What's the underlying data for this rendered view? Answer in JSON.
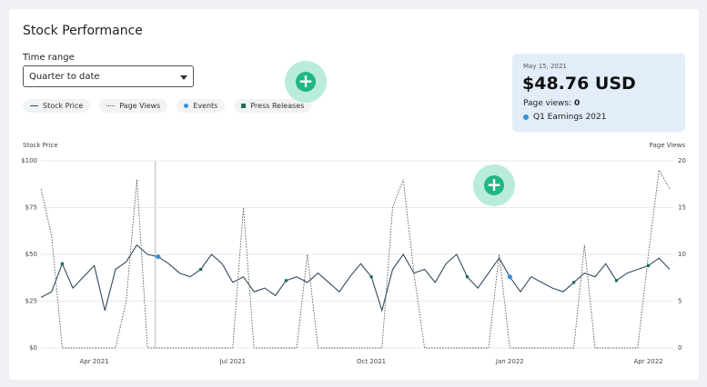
{
  "header": {
    "title": "Stock Performance"
  },
  "controls": {
    "time_range_label": "Time range",
    "time_range_value": "Quarter to date"
  },
  "tooltip": {
    "date": "May 15, 2021",
    "price": "$48.76 USD",
    "page_views_label": "Page views:",
    "page_views_value": "0",
    "event": "Q1 Earnings 2021"
  },
  "chart_data": {
    "type": "line",
    "y_label": "Stock Price",
    "y2_label": "Page Views",
    "categories": [
      null,
      null,
      null,
      null,
      null,
      "Apr 2021",
      null,
      null,
      null,
      null,
      null,
      null,
      null,
      null,
      null,
      null,
      null,
      null,
      "Jul 2021",
      null,
      null,
      null,
      null,
      null,
      null,
      null,
      null,
      null,
      null,
      null,
      null,
      "Oct 2021",
      null,
      null,
      null,
      null,
      null,
      null,
      null,
      null,
      null,
      null,
      null,
      null,
      "Jan 2022",
      null,
      null,
      null,
      null,
      null,
      null,
      null,
      null,
      null,
      null,
      null,
      null,
      "Apr 2022",
      null,
      null
    ],
    "series": [
      {
        "name": "Stock Price",
        "color": "#34495e",
        "style": "solid",
        "values": [
          27,
          30,
          45,
          32,
          38,
          44,
          20,
          42,
          46,
          55,
          50,
          48.76,
          45,
          40,
          38,
          42,
          50,
          45,
          35,
          38,
          30,
          32,
          28,
          36,
          38,
          35,
          40,
          35,
          30,
          38,
          45,
          38,
          20,
          42,
          50,
          40,
          42,
          35,
          45,
          50,
          38,
          32,
          40,
          48,
          38,
          30,
          38,
          35,
          32,
          30,
          35,
          40,
          38,
          45,
          36,
          40,
          42,
          44,
          48,
          42
        ]
      },
      {
        "name": "Page Views",
        "color": "#555555",
        "style": "dotted",
        "axis": "y2",
        "values": [
          17,
          12,
          0,
          0,
          0,
          0,
          0,
          0,
          5,
          18,
          0,
          0,
          0,
          0,
          0,
          0,
          0,
          0,
          0,
          15,
          0,
          0,
          0,
          0,
          0,
          10,
          0,
          0,
          0,
          0,
          0,
          0,
          0,
          15,
          18,
          8,
          0,
          0,
          0,
          0,
          0,
          0,
          0,
          10,
          0,
          0,
          0,
          0,
          0,
          0,
          0,
          11,
          0,
          0,
          0,
          0,
          0,
          10,
          19,
          17
        ]
      },
      {
        "name": "Events",
        "color": "#3b8fd9",
        "style": "dot",
        "values": [
          null,
          null,
          null,
          null,
          null,
          null,
          null,
          null,
          null,
          null,
          null,
          48.76,
          null,
          null,
          null,
          null,
          null,
          null,
          null,
          null,
          null,
          null,
          null,
          null,
          null,
          null,
          null,
          null,
          null,
          null,
          null,
          null,
          null,
          null,
          null,
          null,
          null,
          null,
          null,
          null,
          null,
          null,
          null,
          null,
          38,
          null,
          null,
          null,
          null,
          null,
          null,
          null,
          null,
          null,
          null,
          null,
          null,
          null,
          null,
          null
        ]
      },
      {
        "name": "Press Releases",
        "color": "#1a6b5a",
        "style": "square",
        "values": [
          null,
          null,
          45,
          null,
          null,
          null,
          null,
          null,
          null,
          null,
          null,
          null,
          null,
          null,
          null,
          42,
          null,
          null,
          null,
          null,
          null,
          null,
          null,
          36,
          null,
          null,
          null,
          null,
          null,
          null,
          null,
          38,
          null,
          null,
          null,
          null,
          null,
          null,
          null,
          null,
          38,
          null,
          null,
          null,
          null,
          null,
          null,
          null,
          null,
          null,
          35,
          null,
          null,
          null,
          36,
          null,
          null,
          44,
          null,
          null
        ]
      }
    ],
    "ylim": [
      0,
      100
    ],
    "yticks": [
      {
        "value": 0,
        "label": "$0"
      },
      {
        "value": 25,
        "label": "$25"
      },
      {
        "value": 50,
        "label": "$50"
      },
      {
        "value": 75,
        "label": "$75"
      },
      {
        "value": 100,
        "label": "$100"
      }
    ],
    "y2lim": [
      0,
      20
    ],
    "y2ticks": [
      0,
      5,
      10,
      15,
      20
    ],
    "grid": true
  }
}
